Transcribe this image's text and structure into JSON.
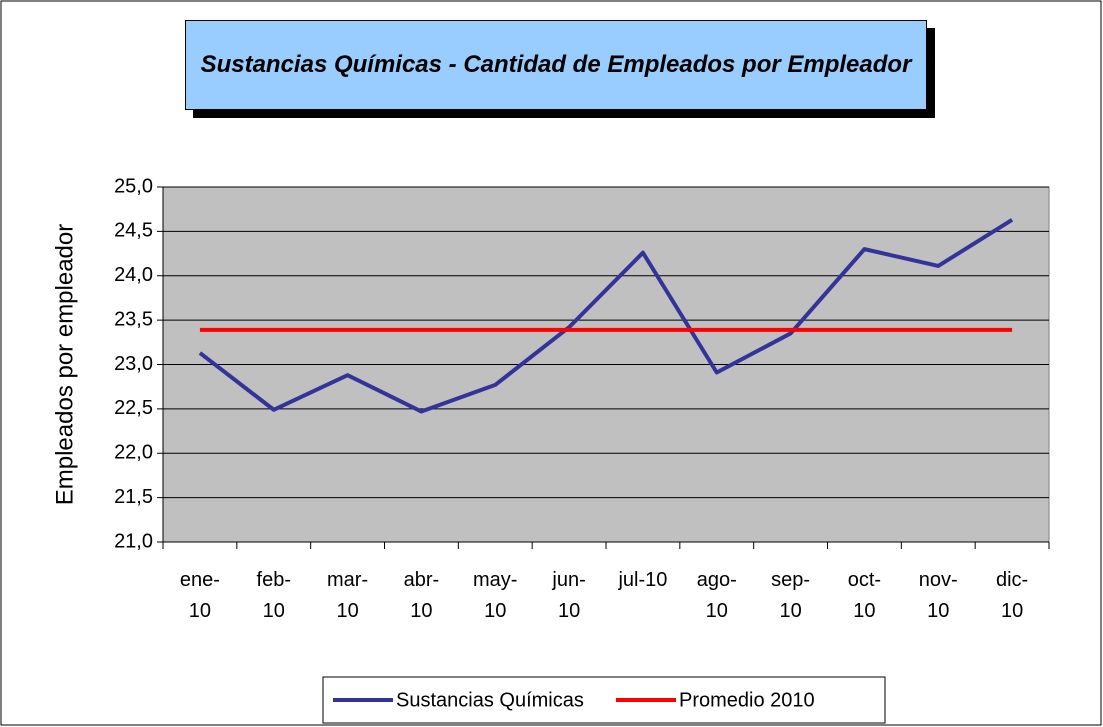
{
  "chart_data": {
    "type": "line",
    "title": "Sustancias Químicas - Cantidad de Empleados por Empleador",
    "y_label": "Empleados por empleador",
    "categories": [
      "ene-10",
      "feb-10",
      "mar-10",
      "abr-10",
      "may-10",
      "jun-10",
      "jul-10",
      "ago-10",
      "sep-10",
      "oct-10",
      "nov-10",
      "dic-10"
    ],
    "series": [
      {
        "name": "Sustancias Químicas",
        "color": "#333399",
        "values": [
          23.13,
          22.49,
          22.88,
          22.47,
          22.77,
          23.42,
          24.26,
          22.91,
          23.35,
          24.3,
          24.11,
          24.63
        ]
      },
      {
        "name": "Promedio 2010",
        "color": "#ff0000",
        "values": [
          23.39,
          23.39,
          23.39,
          23.39,
          23.39,
          23.39,
          23.39,
          23.39,
          23.39,
          23.39,
          23.39,
          23.39
        ]
      }
    ],
    "ylim": [
      21,
      25
    ],
    "yticks": [
      {
        "value": 21,
        "label": "21,0"
      },
      {
        "value": 21.5,
        "label": "21,5"
      },
      {
        "value": 22,
        "label": "22,0"
      },
      {
        "value": 22.5,
        "label": "22,5"
      },
      {
        "value": 23,
        "label": "23,0"
      },
      {
        "value": 23.5,
        "label": "23,5"
      },
      {
        "value": 24,
        "label": "24,0"
      },
      {
        "value": 24.5,
        "label": "24,5"
      },
      {
        "value": 25,
        "label": "25,0"
      }
    ],
    "grid": true,
    "legend": "bottom",
    "plot_background": "#c0c0c0"
  }
}
